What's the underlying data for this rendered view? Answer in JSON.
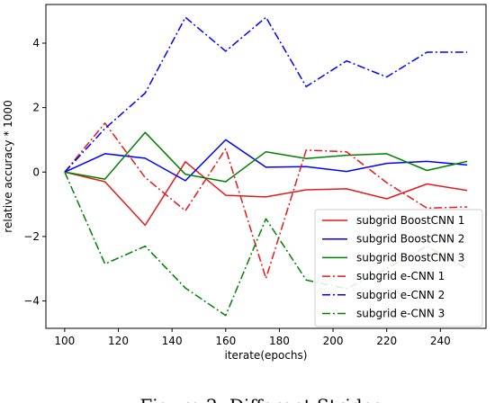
{
  "chart_data": {
    "type": "line",
    "title": "",
    "xlabel": "iterate(epochs)",
    "ylabel": "relative accuracy * 1000",
    "xlim": [
      93,
      257
    ],
    "ylim": [
      -4.85,
      5.2
    ],
    "xticks": [
      100,
      120,
      140,
      160,
      180,
      200,
      220,
      240
    ],
    "yticks": [
      -4,
      -2,
      0,
      2,
      4
    ],
    "ytick_labels": [
      "−4",
      "−2",
      "0",
      "2",
      "4"
    ],
    "grid": false,
    "legend_position": "lower-right",
    "x": [
      100,
      115,
      130,
      145,
      160,
      175,
      190,
      205,
      220,
      235,
      250
    ],
    "series": [
      {
        "name": "subgrid BoostCNN 1",
        "color": "#e41a1c",
        "dash": "solid",
        "values": [
          0,
          -0.3,
          -1.65,
          0.32,
          -0.72,
          -0.77,
          -0.55,
          -0.52,
          -0.83,
          -0.37,
          -0.57
        ]
      },
      {
        "name": "subgrid BoostCNN 2",
        "color": "#0000ff",
        "dash": "solid",
        "values": [
          0,
          0.57,
          0.43,
          -0.27,
          1.0,
          0.15,
          0.17,
          0.02,
          0.27,
          0.33,
          0.22
        ]
      },
      {
        "name": "subgrid BoostCNN 3",
        "color": "#008000",
        "dash": "solid",
        "values": [
          0,
          -0.22,
          1.23,
          -0.07,
          -0.3,
          0.63,
          0.42,
          0.52,
          0.57,
          0.05,
          0.33
        ]
      },
      {
        "name": "subgrid e-CNN 1",
        "color": "#e41a1c",
        "dash": "dashdot",
        "values": [
          0,
          1.52,
          -0.17,
          -1.2,
          0.72,
          -3.3,
          0.68,
          0.63,
          -0.33,
          -1.12,
          -1.08
        ]
      },
      {
        "name": "subgrid e-CNN 2",
        "color": "#0000ff",
        "dash": "dashdot",
        "values": [
          0,
          1.35,
          2.45,
          4.8,
          3.75,
          4.8,
          2.65,
          3.45,
          2.95,
          3.72,
          3.72
        ]
      },
      {
        "name": "subgrid e-CNN 3",
        "color": "#008000",
        "dash": "dashdot",
        "values": [
          0,
          -2.85,
          -2.3,
          -3.6,
          -4.45,
          -1.45,
          -3.35,
          -3.62,
          -3.0,
          -2.3,
          -3.0
        ]
      }
    ]
  },
  "caption": "Figure 2: Different Strides"
}
